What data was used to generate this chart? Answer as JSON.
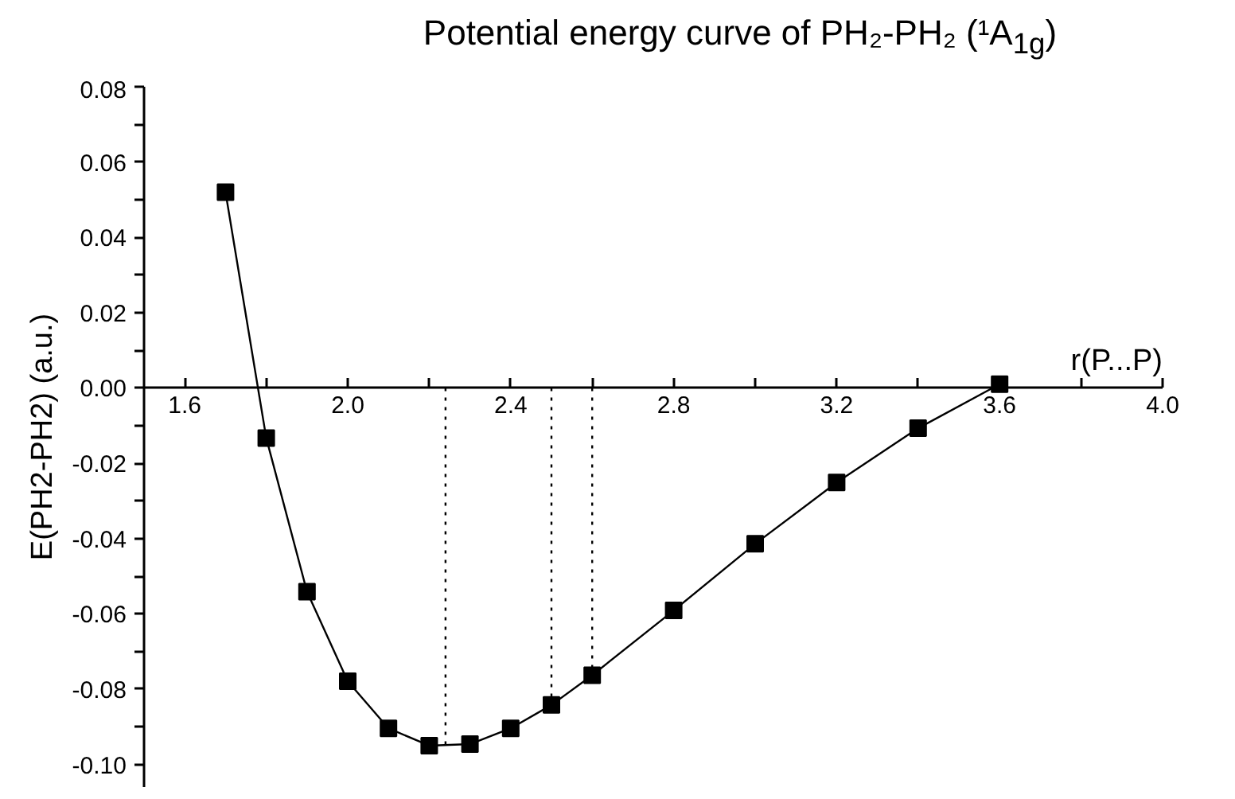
{
  "chart_data": {
    "type": "line",
    "title": "Potential energy curve of PH₂-PH₂ (¹A$_{1g}$)",
    "xlabel": "r(P...P)",
    "ylabel": "E(PH2-PH2) (a.u.)",
    "x": [
      1.7,
      1.8,
      1.9,
      2.0,
      2.1,
      2.2,
      2.3,
      2.4,
      2.5,
      2.6,
      2.8,
      3.0,
      3.2,
      3.4,
      3.6
    ],
    "series": [
      {
        "color": "#000000",
        "values": [
          0.052,
          -0.0133,
          -0.0541,
          -0.0779,
          -0.0904,
          -0.095,
          -0.0946,
          -0.0904,
          -0.0842,
          -0.0763,
          -0.0591,
          -0.0414,
          -0.0251,
          -0.0107,
          0.001
        ]
      }
    ],
    "marker": "square",
    "line_style": "solid",
    "xlim": [
      1.5,
      4.0
    ],
    "ylim": [
      -0.106,
      0.08
    ],
    "xticks": [
      {
        "value": 1.6,
        "label": "1.6"
      },
      {
        "value": 1.8,
        "label": null
      },
      {
        "value": 2.0,
        "label": "2.0"
      },
      {
        "value": 2.2,
        "label": null
      },
      {
        "value": 2.4,
        "label": "2.4"
      },
      {
        "value": 2.6,
        "label": null
      },
      {
        "value": 2.8,
        "label": "2.8"
      },
      {
        "value": 3.0,
        "label": null
      },
      {
        "value": 3.2,
        "label": "3.2"
      },
      {
        "value": 3.4,
        "label": null
      },
      {
        "value": 3.6,
        "label": "3.6"
      },
      {
        "value": 3.8,
        "label": null
      },
      {
        "value": 4.0,
        "label": "4.0"
      }
    ],
    "yticks": [
      {
        "value": -0.1,
        "label": "-0.10"
      },
      {
        "value": -0.09,
        "label": null
      },
      {
        "value": -0.08,
        "label": "-0.08"
      },
      {
        "value": -0.07,
        "label": null
      },
      {
        "value": -0.06,
        "label": "-0.06"
      },
      {
        "value": -0.05,
        "label": null
      },
      {
        "value": -0.04,
        "label": "-0.04"
      },
      {
        "value": -0.03,
        "label": null
      },
      {
        "value": -0.02,
        "label": "-0.02"
      },
      {
        "value": -0.01,
        "label": null
      },
      {
        "value": 0,
        "label": "0.00"
      },
      {
        "value": 0.01,
        "label": null
      },
      {
        "value": 0.02,
        "label": "0.02"
      },
      {
        "value": 0.03,
        "label": null
      },
      {
        "value": 0.04,
        "label": "0.04"
      },
      {
        "value": 0.05,
        "label": null
      },
      {
        "value": 0.06,
        "label": "0.06"
      },
      {
        "value": 0.07,
        "label": null
      },
      {
        "value": 0.08,
        "label": "0.08"
      }
    ],
    "ref_lines": [
      {
        "axis": "x",
        "value": 2.24,
        "line_style": "dotted",
        "color": "#000000"
      },
      {
        "axis": "x",
        "value": 2.5,
        "line_style": "dotted",
        "color": "#000000"
      },
      {
        "axis": "x",
        "value": 2.6,
        "line_style": "dotted",
        "color": "#000000"
      }
    ],
    "grid": false
  }
}
